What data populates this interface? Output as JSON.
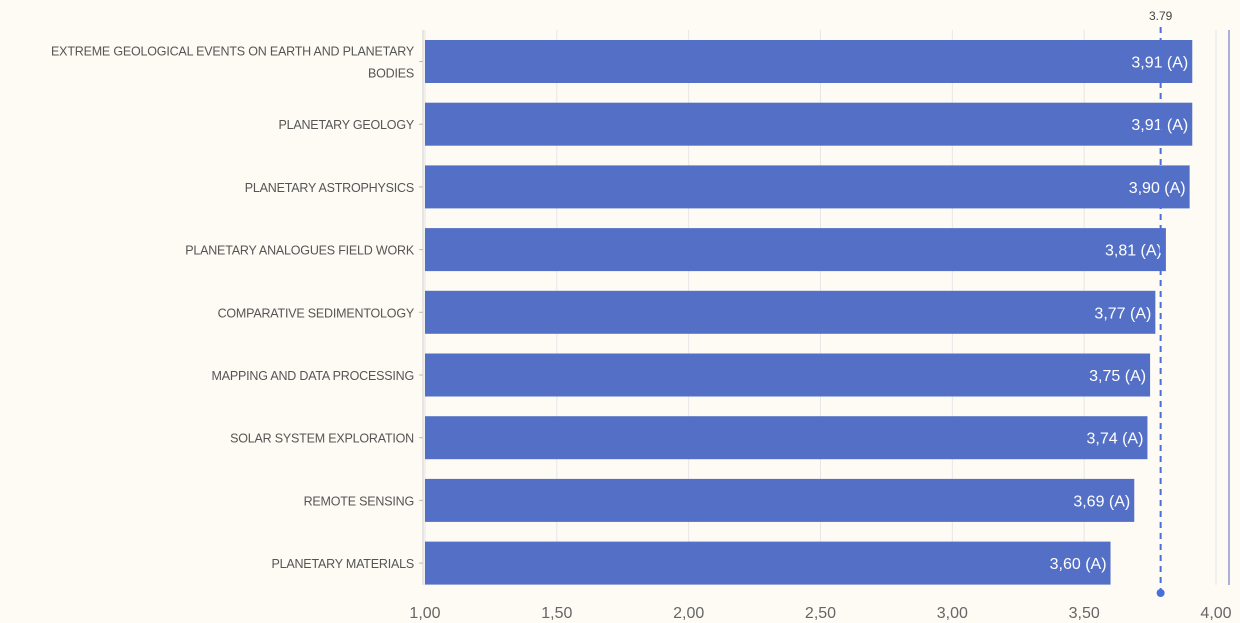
{
  "chart_data": {
    "type": "bar",
    "orientation": "horizontal",
    "categories": [
      "EXTREME GEOLOGICAL EVENTS ON EARTH AND PLANETARY BODIES",
      "PLANETARY GEOLOGY",
      "PLANETARY ASTROPHYSICS",
      "PLANETARY ANALOGUES FIELD WORK",
      "COMPARATIVE SEDIMENTOLOGY",
      "MAPPING AND DATA PROCESSING",
      "SOLAR SYSTEM EXPLORATION",
      "REMOTE SENSING",
      "PLANETARY MATERIALS"
    ],
    "category_label_lines": [
      [
        "EXTREME GEOLOGICAL EVENTS ON EARTH AND PLANETARY",
        "BODIES"
      ],
      [
        "PLANETARY GEOLOGY"
      ],
      [
        "PLANETARY ASTROPHYSICS"
      ],
      [
        "PLANETARY ANALOGUES FIELD WORK"
      ],
      [
        "COMPARATIVE SEDIMENTOLOGY"
      ],
      [
        "MAPPING AND DATA PROCESSING"
      ],
      [
        "SOLAR SYSTEM EXPLORATION"
      ],
      [
        "REMOTE SENSING"
      ],
      [
        "PLANETARY MATERIALS"
      ]
    ],
    "values": [
      3.91,
      3.91,
      3.9,
      3.81,
      3.77,
      3.75,
      3.74,
      3.69,
      3.6
    ],
    "data_labels": [
      "3,91 (A)",
      "3,91 (A)",
      "3,90 (A)",
      "3,81 (A)",
      "3,77 (A)",
      "3,75 (A)",
      "3,74 (A)",
      "3,69 (A)",
      "3,60 (A)"
    ],
    "xlim": [
      1.0,
      4.0
    ],
    "x_ticks": [
      1.0,
      1.5,
      2.0,
      2.5,
      3.0,
      3.5,
      4.0
    ],
    "x_tick_labels": [
      "1,00",
      "1,50",
      "2,00",
      "2,50",
      "3,00",
      "3,50",
      "4,00"
    ],
    "reference_line": {
      "value": 3.79,
      "label": "3.79",
      "style": "dashed"
    },
    "bar_color": "#5470c6",
    "reference_color": "#4a6fd8",
    "grid": true,
    "legend": false,
    "title": "",
    "xlabel": "",
    "ylabel": ""
  }
}
